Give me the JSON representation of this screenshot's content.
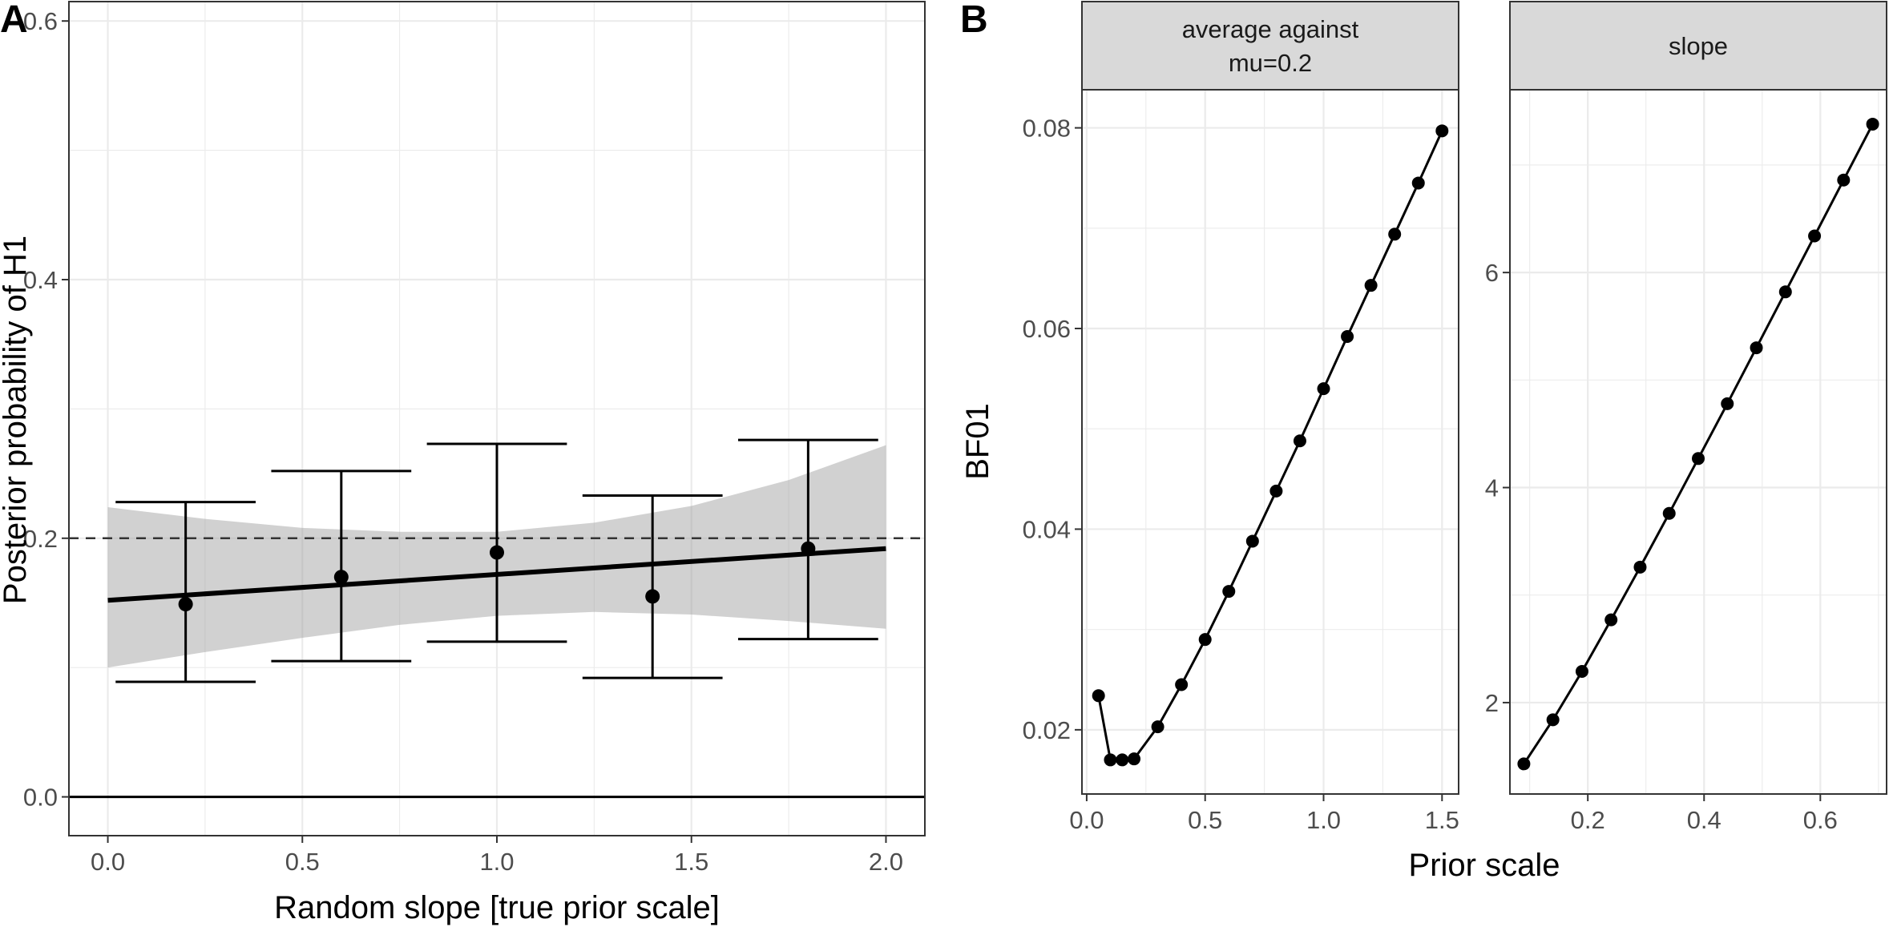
{
  "chart_data": [
    {
      "type": "scatter",
      "panel": "A",
      "xlabel": "Random slope [true prior scale]",
      "ylabel": "Posterior probability of H1",
      "xlim": [
        -0.1,
        2.1
      ],
      "ylim": [
        -0.03,
        0.615
      ],
      "xticks": [
        0.0,
        0.5,
        1.0,
        1.5,
        2.0
      ],
      "xtick_labels": [
        "0.0",
        "0.5",
        "1.0",
        "1.5",
        "2.0"
      ],
      "yticks": [
        0.0,
        0.2,
        0.4,
        0.6
      ],
      "ytick_labels": [
        "0.0",
        "0.2",
        "0.4",
        "0.6"
      ],
      "points": [
        {
          "x": 0.2,
          "y": 0.149,
          "ymin": 0.089,
          "ymax": 0.228
        },
        {
          "x": 0.6,
          "y": 0.17,
          "ymin": 0.105,
          "ymax": 0.252
        },
        {
          "x": 1.0,
          "y": 0.189,
          "ymin": 0.12,
          "ymax": 0.273
        },
        {
          "x": 1.4,
          "y": 0.155,
          "ymin": 0.092,
          "ymax": 0.233
        },
        {
          "x": 1.8,
          "y": 0.192,
          "ymin": 0.122,
          "ymax": 0.276
        }
      ],
      "errorbar_half_width": 0.18,
      "regression_line": {
        "x": [
          0.0,
          2.0
        ],
        "y": [
          0.152,
          0.192
        ]
      },
      "confidence_band": {
        "x": [
          0.0,
          0.25,
          0.5,
          0.75,
          1.0,
          1.25,
          1.5,
          1.75,
          2.0
        ],
        "lower": [
          0.1,
          0.112,
          0.123,
          0.133,
          0.14,
          0.143,
          0.141,
          0.136,
          0.13
        ],
        "upper": [
          0.224,
          0.215,
          0.208,
          0.205,
          0.205,
          0.212,
          0.225,
          0.245,
          0.272
        ]
      },
      "reference_lines": [
        {
          "y": 0.2,
          "style": "dashed"
        },
        {
          "y": 0.0,
          "style": "solid"
        }
      ]
    },
    {
      "type": "line",
      "panel": "B",
      "facet": "average against\nmu=0.2",
      "xlabel": "Prior scale",
      "ylabel": "BF01",
      "xlim": [
        -0.02,
        1.57
      ],
      "ylim": [
        0.0136,
        0.0838
      ],
      "xticks": [
        0.0,
        0.5,
        1.0,
        1.5
      ],
      "xtick_labels": [
        "0.0",
        "0.5",
        "1.0",
        "1.5"
      ],
      "yticks": [
        0.02,
        0.04,
        0.06,
        0.08
      ],
      "ytick_labels": [
        "0.02",
        "0.04",
        "0.06",
        "0.08"
      ],
      "x": [
        0.05,
        0.1,
        0.15,
        0.2,
        0.3,
        0.4,
        0.5,
        0.6,
        0.7,
        0.8,
        0.9,
        1.0,
        1.1,
        1.2,
        1.3,
        1.4,
        1.5
      ],
      "y": [
        0.0234,
        0.017,
        0.017,
        0.0171,
        0.0203,
        0.0245,
        0.029,
        0.0338,
        0.0388,
        0.0438,
        0.0488,
        0.054,
        0.0592,
        0.0643,
        0.0694,
        0.0745,
        0.0797
      ]
    },
    {
      "type": "line",
      "panel": "B",
      "facet": "slope",
      "xlabel": "Prior scale",
      "ylabel": "BF01",
      "xlim": [
        0.066,
        0.714
      ],
      "ylim": [
        1.15,
        7.7
      ],
      "xticks": [
        0.2,
        0.4,
        0.6
      ],
      "xtick_labels": [
        "0.2",
        "0.4",
        "0.6"
      ],
      "yticks": [
        2,
        4,
        6
      ],
      "ytick_labels": [
        "2",
        "4",
        "6"
      ],
      "x": [
        0.09,
        0.14,
        0.19,
        0.24,
        0.29,
        0.34,
        0.39,
        0.44,
        0.49,
        0.54,
        0.59,
        0.64,
        0.69
      ],
      "y": [
        1.43,
        1.84,
        2.29,
        2.77,
        3.26,
        3.76,
        4.27,
        4.78,
        5.3,
        5.82,
        6.34,
        6.86,
        7.38
      ]
    }
  ],
  "labels": {
    "panel_a_tag": "A",
    "panel_b_tag": "B",
    "facet1_line1": "average against",
    "facet1_line2": "mu=0.2",
    "facet2": "slope"
  }
}
